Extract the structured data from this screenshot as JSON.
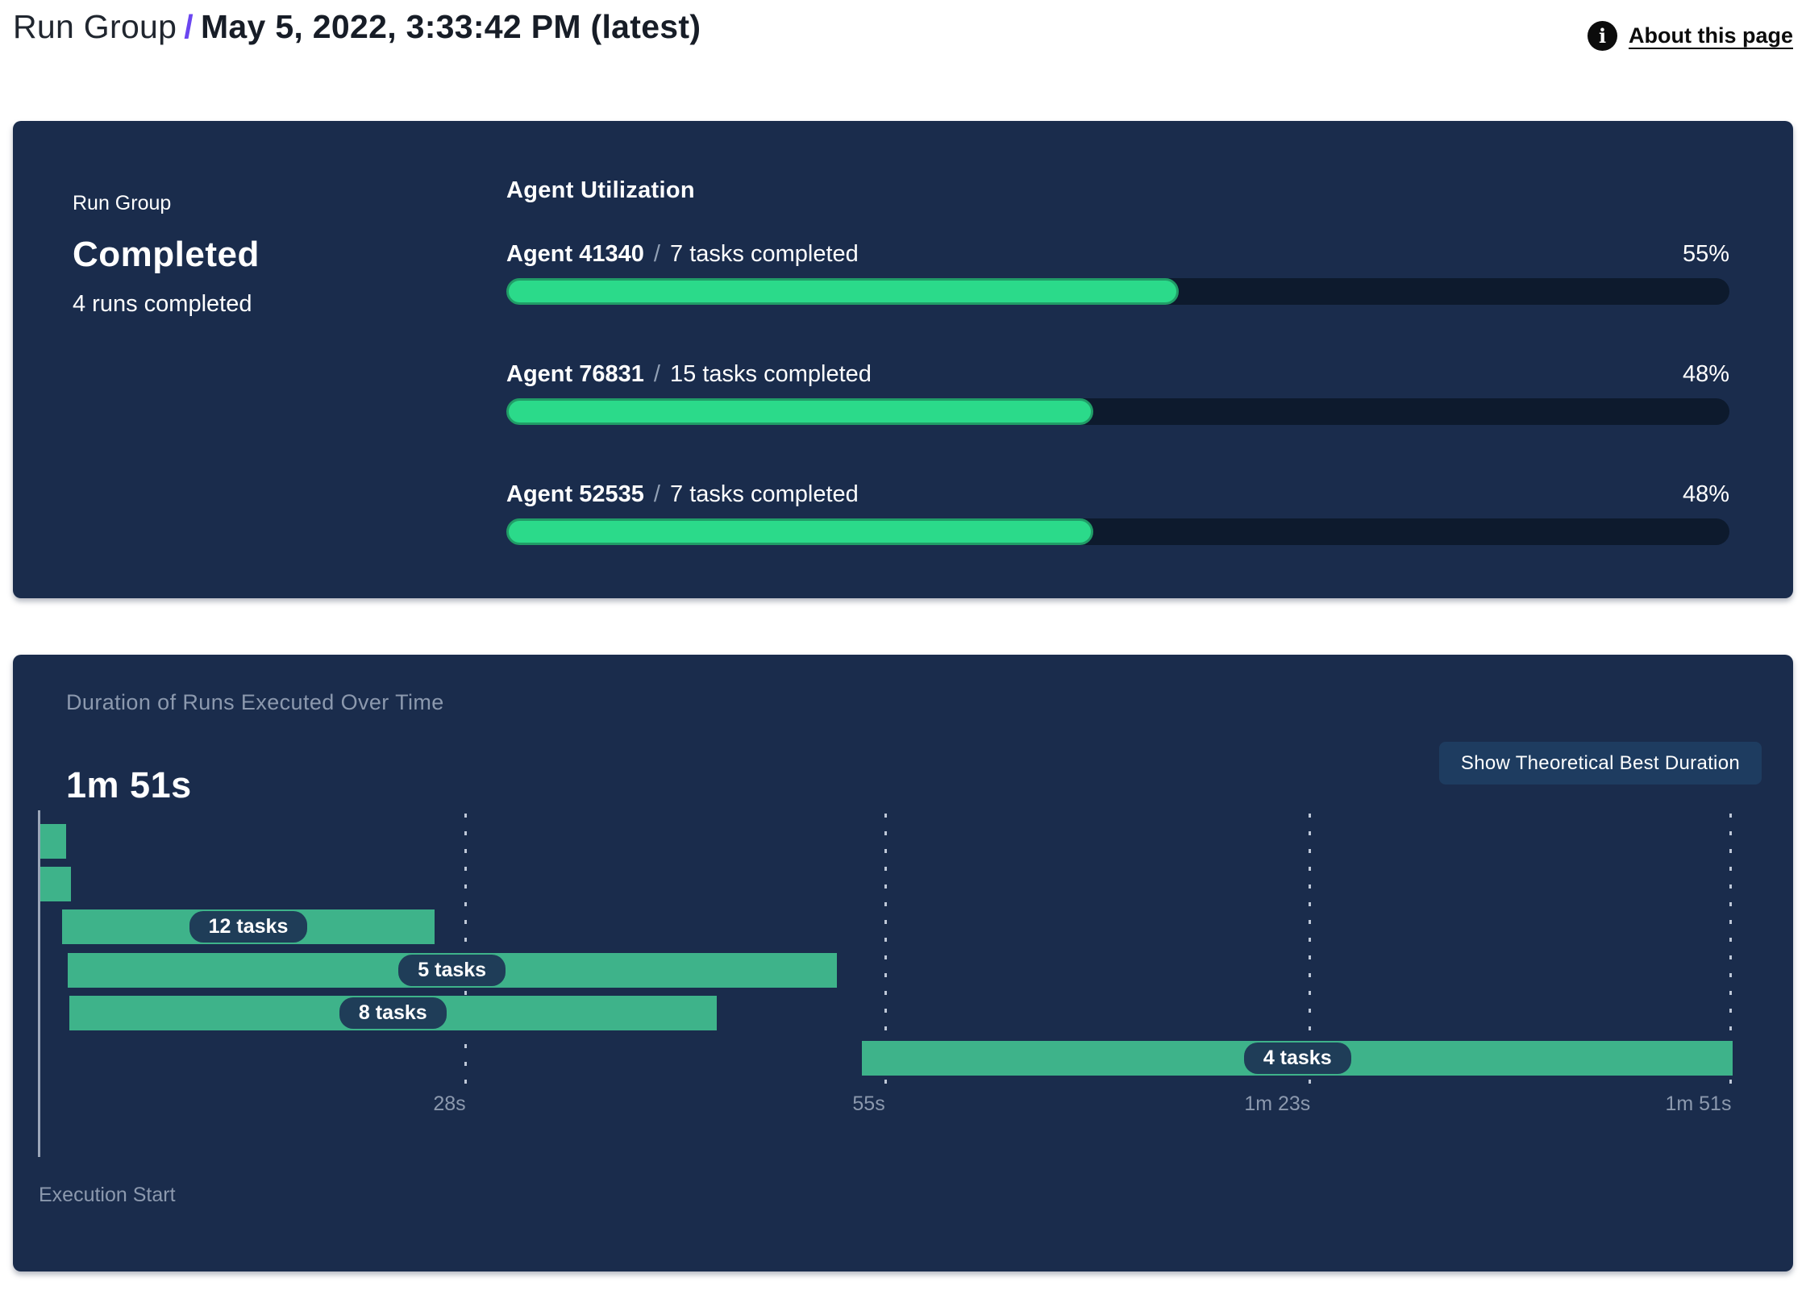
{
  "header": {
    "title_prefix": "Run Group",
    "separator": "/",
    "title_date": "May 5, 2022, 3:33:42 PM (latest)",
    "about_link": "About this page",
    "info_icon_glyph": "i"
  },
  "summary": {
    "label": "Run Group",
    "status": "Completed",
    "subtext": "4 runs completed"
  },
  "utilization": {
    "title": "Agent Utilization",
    "agents": [
      {
        "name": "Agent 41340",
        "separator": "/",
        "tasks": "7 tasks completed",
        "percent": "55%",
        "percent_value": 55
      },
      {
        "name": "Agent 76831",
        "separator": "/",
        "tasks": "15 tasks completed",
        "percent": "48%",
        "percent_value": 48
      },
      {
        "name": "Agent 52535",
        "separator": "/",
        "tasks": "7 tasks completed",
        "percent": "48%",
        "percent_value": 48
      }
    ]
  },
  "duration": {
    "title": "Duration of Runs Executed Over Time",
    "total": "1m 51s",
    "button": "Show Theoretical Best Duration",
    "execution_start_label": "Execution Start",
    "axis_ticks": [
      {
        "label": "28s",
        "pos_pct": 25.2
      },
      {
        "label": "55s",
        "pos_pct": 50.0
      },
      {
        "label": "1m 23s",
        "pos_pct": 75.1
      },
      {
        "label": "1m 51s",
        "pos_pct": 100
      }
    ],
    "runs": [
      {
        "label": "",
        "start_pct": 0,
        "width_pct": 1.6
      },
      {
        "label": "",
        "start_pct": 0,
        "width_pct": 1.9
      },
      {
        "label": "12 tasks",
        "start_pct": 1.4,
        "width_pct": 22.0
      },
      {
        "label": "5 tasks",
        "start_pct": 1.7,
        "width_pct": 45.5
      },
      {
        "label": "8 tasks",
        "start_pct": 1.8,
        "width_pct": 38.3
      },
      {
        "label": "4 tasks",
        "start_pct": 48.7,
        "width_pct": 51.5
      }
    ]
  },
  "chart_data": {
    "type": "gantt",
    "title": "Duration of Runs Executed Over Time",
    "total_duration": "1m 51s",
    "x_axis": {
      "label": "Execution Start",
      "range_seconds": [
        0,
        111
      ],
      "ticks_seconds": [
        28,
        55,
        83,
        111
      ],
      "tick_labels": [
        "28s",
        "55s",
        "1m 23s",
        "1m 51s"
      ],
      "gridlines": "dashed-vertical"
    },
    "runs": [
      {
        "tasks": null,
        "start_s": 0,
        "end_s": 1.7
      },
      {
        "tasks": null,
        "start_s": 0,
        "end_s": 2.1
      },
      {
        "tasks": 12,
        "start_s": 1.6,
        "end_s": 26.0
      },
      {
        "tasks": 5,
        "start_s": 1.9,
        "end_s": 52.4
      },
      {
        "tasks": 8,
        "start_s": 2.0,
        "end_s": 44.5
      },
      {
        "tasks": 4,
        "start_s": 54.1,
        "end_s": 111.3
      }
    ]
  },
  "colors": {
    "card_background": "#1a2c4c",
    "accent_purple": "#6b46f0",
    "progress_green": "#2bda8a",
    "progress_green_border": "#219c67",
    "progress_track": "#0d1a2d",
    "gantt_bar_green": "#3eb38a",
    "pill_background": "#1f3d58",
    "button_background": "#1e3c60",
    "muted_text": "#8c99ae"
  }
}
